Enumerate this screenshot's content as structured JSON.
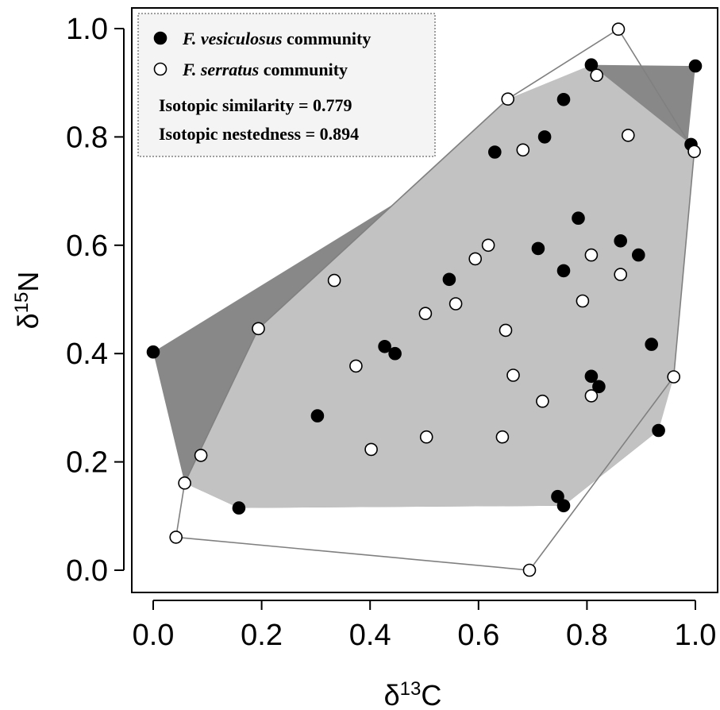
{
  "chart_data": {
    "type": "scatter",
    "xlabel": "δ13C",
    "ylabel": "δ15N",
    "xlabel_parts": {
      "base": "δ",
      "sup": "13",
      "rest": "C"
    },
    "ylabel_parts": {
      "base": "δ",
      "sup": "15",
      "rest": "N"
    },
    "xlim": [
      0.0,
      1.0
    ],
    "ylim": [
      0.0,
      1.0
    ],
    "x_ticks": [
      "0.0",
      "0.2",
      "0.4",
      "0.6",
      "0.8",
      "1.0"
    ],
    "y_ticks": [
      "0.0",
      "0.2",
      "0.4",
      "0.6",
      "0.8",
      "1.0"
    ],
    "grid": false,
    "legend_position": "top-left",
    "colors": {
      "vesiculosus_point": "#000000",
      "serratus_point": "#ffffff",
      "vesiculosus_hull_only": "#888888",
      "overlap": "#c2c2c2",
      "serratus_hull_line": "#808080"
    },
    "series": [
      {
        "name_italic": "F. vesiculosus",
        "name_rest": " community",
        "marker": "filled-circle",
        "points": [
          [
            0.0,
            0.403
          ],
          [
            0.158,
            0.115
          ],
          [
            0.303,
            0.285
          ],
          [
            0.427,
            0.413
          ],
          [
            0.446,
            0.4
          ],
          [
            0.546,
            0.537
          ],
          [
            0.63,
            0.772
          ],
          [
            0.722,
            0.8
          ],
          [
            0.71,
            0.594
          ],
          [
            0.757,
            0.869
          ],
          [
            0.757,
            0.553
          ],
          [
            0.784,
            0.65
          ],
          [
            0.808,
            0.933
          ],
          [
            0.862,
            0.608
          ],
          [
            0.895,
            0.582
          ],
          [
            0.919,
            0.417
          ],
          [
            0.808,
            0.358
          ],
          [
            0.822,
            0.339
          ],
          [
            0.932,
            0.258
          ],
          [
            0.746,
            0.136
          ],
          [
            0.757,
            0.119
          ],
          [
            0.992,
            0.786
          ],
          [
            1.0,
            0.931
          ]
        ]
      },
      {
        "name_italic": "F. serratus",
        "name_rest": " community",
        "marker": "open-circle",
        "points": [
          [
            0.042,
            0.061
          ],
          [
            0.058,
            0.161
          ],
          [
            0.088,
            0.212
          ],
          [
            0.194,
            0.446
          ],
          [
            0.334,
            0.535
          ],
          [
            0.374,
            0.377
          ],
          [
            0.402,
            0.223
          ],
          [
            0.502,
            0.474
          ],
          [
            0.504,
            0.246
          ],
          [
            0.558,
            0.492
          ],
          [
            0.594,
            0.575
          ],
          [
            0.618,
            0.6
          ],
          [
            0.65,
            0.443
          ],
          [
            0.654,
            0.87
          ],
          [
            0.664,
            0.36
          ],
          [
            0.682,
            0.776
          ],
          [
            0.718,
            0.312
          ],
          [
            0.644,
            0.246
          ],
          [
            0.694,
            0.0
          ],
          [
            0.792,
            0.497
          ],
          [
            0.808,
            0.582
          ],
          [
            0.808,
            0.322
          ],
          [
            0.818,
            0.914
          ],
          [
            0.858,
            0.999
          ],
          [
            0.862,
            0.546
          ],
          [
            0.876,
            0.803
          ],
          [
            0.96,
            0.357
          ],
          [
            0.998,
            0.773
          ]
        ]
      }
    ],
    "hulls": {
      "vesiculosus": [
        [
          0.0,
          0.403
        ],
        [
          0.058,
          0.161
        ],
        [
          0.158,
          0.115
        ],
        [
          0.757,
          0.119
        ],
        [
          0.932,
          0.258
        ],
        [
          1.0,
          0.931
        ],
        [
          0.808,
          0.933
        ],
        [
          0.757,
          0.869
        ]
      ],
      "overlap": [
        [
          0.058,
          0.161
        ],
        [
          0.158,
          0.115
        ],
        [
          0.757,
          0.119
        ],
        [
          0.932,
          0.258
        ],
        [
          0.96,
          0.357
        ],
        [
          0.998,
          0.773
        ],
        [
          0.992,
          0.786
        ],
        [
          0.808,
          0.933
        ],
        [
          0.654,
          0.87
        ],
        [
          0.194,
          0.446
        ]
      ],
      "serratus": [
        [
          0.042,
          0.061
        ],
        [
          0.694,
          0.0
        ],
        [
          0.96,
          0.357
        ],
        [
          0.998,
          0.773
        ],
        [
          0.858,
          0.999
        ],
        [
          0.654,
          0.87
        ],
        [
          0.194,
          0.446
        ],
        [
          0.058,
          0.161
        ]
      ]
    },
    "annotations": [
      "Isotopic similarity = 0.779",
      "Isotopic nestedness = 0.894"
    ]
  }
}
